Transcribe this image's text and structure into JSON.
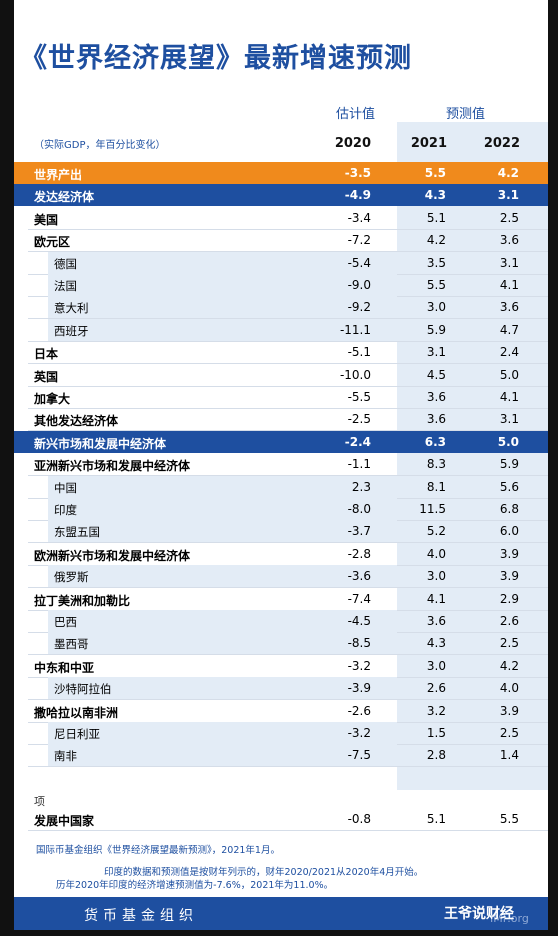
{
  "title": "《世界经济展望》最新增速预测",
  "header": {
    "estimate": "估计值",
    "forecast": "预测值",
    "note": "（实际GDP，年百分比变化）",
    "years": [
      "2020",
      "2021",
      "2022"
    ]
  },
  "table": {
    "rows": [
      [
        "世界产出",
        "-3.5",
        "5.5",
        "4.2"
      ],
      [
        "发达经济体",
        "-4.9",
        "4.3",
        "3.1"
      ],
      [
        "美国",
        "-3.4",
        "5.1",
        "2.5"
      ],
      [
        "欧元区",
        "-7.2",
        "4.2",
        "3.6"
      ],
      [
        "德国",
        "-5.4",
        "3.5",
        "3.1"
      ],
      [
        "法国",
        "-9.0",
        "5.5",
        "4.1"
      ],
      [
        "意大利",
        "-9.2",
        "3.0",
        "3.6"
      ],
      [
        "西班牙",
        "-11.1",
        "5.9",
        "4.7"
      ],
      [
        "日本",
        "-5.1",
        "3.1",
        "2.4"
      ],
      [
        "英国",
        "-10.0",
        "4.5",
        "5.0"
      ],
      [
        "加拿大",
        "-5.5",
        "3.6",
        "4.1"
      ],
      [
        "其他发达经济体",
        "-2.5",
        "3.6",
        "3.1"
      ],
      [
        "新兴市场和发展中经济体",
        "-2.4",
        "6.3",
        "5.0"
      ],
      [
        "亚洲新兴市场和发展中经济体",
        "-1.1",
        "8.3",
        "5.9"
      ],
      [
        "中国",
        "2.3",
        "8.1",
        "5.6"
      ],
      [
        "印度",
        "-8.0",
        "11.5",
        "6.8"
      ],
      [
        "东盟五国",
        "-3.7",
        "5.2",
        "6.0"
      ],
      [
        "欧洲新兴市场和发展中经济体",
        "-2.8",
        "4.0",
        "3.9"
      ],
      [
        "俄罗斯",
        "-3.6",
        "3.0",
        "3.9"
      ],
      [
        "拉丁美洲和加勒比",
        "-7.4",
        "4.1",
        "2.9"
      ],
      [
        "巴西",
        "-4.5",
        "3.6",
        "2.6"
      ],
      [
        "墨西哥",
        "-8.5",
        "4.3",
        "2.5"
      ],
      [
        "中东和中亚",
        "-3.2",
        "3.0",
        "4.2"
      ],
      [
        "沙特阿拉伯",
        "-3.9",
        "2.6",
        "4.0"
      ],
      [
        "撒哈拉以南非洲",
        "-2.6",
        "3.2",
        "3.9"
      ],
      [
        "尼日利亚",
        "-3.2",
        "1.5",
        "2.5"
      ],
      [
        "南非",
        "-7.5",
        "2.8",
        "1.4"
      ]
    ]
  },
  "memo": {
    "heading": "项",
    "row": [
      "发展中国家",
      "-0.8",
      "5.1",
      "5.5"
    ]
  },
  "footnotes": [
    "国际币基金组织《世界经济展望最新预测》，2021年1月。",
    "印度的数据和预测值是按财年列示的，财年2020/2021从2020年4月开始。",
    "历年2020年印度的经济增速预测值为-7.6%，2021年为11.0%。"
  ],
  "footer": {
    "org": "货币基金组织",
    "watermark": "王爷说财经",
    "site": "IMF.org"
  }
}
